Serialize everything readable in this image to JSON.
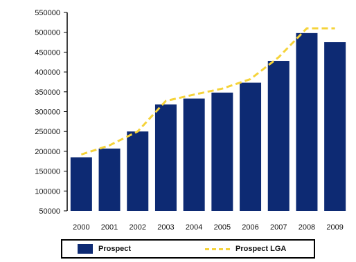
{
  "chart_data": {
    "type": "bar",
    "categories": [
      "2000",
      "2001",
      "2002",
      "2003",
      "2004",
      "2005",
      "2006",
      "2007",
      "2008",
      "2009"
    ],
    "series": [
      {
        "name": "Prospect",
        "type": "bar",
        "color": "#0d2a73",
        "values": [
          185000,
          207000,
          250000,
          318000,
          333000,
          348000,
          373000,
          428000,
          498000,
          475000
        ]
      },
      {
        "name": "Prospect LGA",
        "type": "line",
        "style": "dashed",
        "color": "#f5d33a",
        "values": [
          192000,
          215000,
          250000,
          327000,
          343000,
          358000,
          382000,
          437000,
          510000,
          510000
        ]
      }
    ],
    "y_ticks": [
      "550000",
      "500000",
      "450000",
      "400000",
      "350000",
      "300000",
      "250000",
      "200000",
      "150000",
      "100000",
      "50000"
    ],
    "ylim": [
      50000,
      550000
    ],
    "title": "",
    "xlabel": "",
    "ylabel": "",
    "legend_position": "bottom",
    "grid": false
  }
}
